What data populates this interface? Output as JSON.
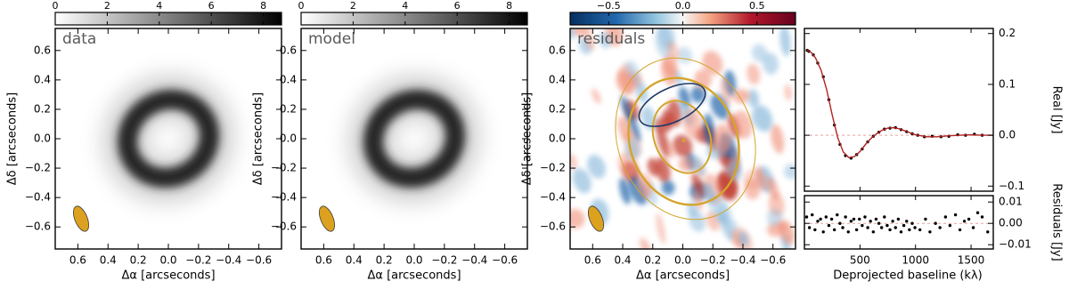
{
  "chart_data": [
    {
      "type": "image",
      "title": "data",
      "colormap": "gray",
      "xlabel": "Δα  [arcseconds]",
      "ylabel": "Δδ  [arcseconds]",
      "xlim": [
        0.75,
        -0.75
      ],
      "ylim": [
        -0.75,
        0.75
      ],
      "xticks": [
        0.6,
        0.4,
        0.2,
        {
          "value": 0,
          "label": "0.0"
        },
        {
          "value": -0.2,
          "label": "−0.2"
        },
        {
          "value": -0.4,
          "label": "−0.4"
        },
        {
          "value": -0.6,
          "label": "−0.6"
        }
      ],
      "yticks": [
        {
          "value": -0.6,
          "label": "−0.6"
        },
        {
          "value": -0.4,
          "label": "−0.4"
        },
        {
          "value": -0.2,
          "label": "−0.2"
        },
        {
          "value": 0,
          "label": "0.0"
        },
        0.2,
        0.4,
        0.6
      ],
      "colorbar": {
        "clim": [
          0,
          8.7
        ],
        "ticks": [
          0,
          2,
          4,
          6,
          8
        ]
      }
    },
    {
      "type": "image",
      "title": "model",
      "colormap": "gray",
      "xlabel": "Δα  [arcseconds]",
      "ylabel": "Δδ  [arcseconds]",
      "xlim": [
        0.75,
        -0.75
      ],
      "ylim": [
        -0.75,
        0.75
      ],
      "xticks": [
        0.6,
        0.4,
        0.2,
        {
          "value": 0,
          "label": "0.0"
        },
        {
          "value": -0.2,
          "label": "−0.2"
        },
        {
          "value": -0.4,
          "label": "−0.4"
        },
        {
          "value": -0.6,
          "label": "−0.6"
        }
      ],
      "yticks": [
        {
          "value": -0.6,
          "label": "−0.6"
        },
        {
          "value": -0.4,
          "label": "−0.4"
        },
        {
          "value": -0.2,
          "label": "−0.2"
        },
        {
          "value": 0,
          "label": "0.0"
        },
        0.2,
        0.4,
        0.6
      ],
      "colorbar": {
        "clim": [
          0,
          8.7
        ],
        "ticks": [
          0,
          2,
          4,
          6,
          8
        ]
      }
    },
    {
      "type": "image",
      "title": "residuals",
      "colormap": "RdBu",
      "xlabel": "Δα  [arcseconds]",
      "ylabel": "Δδ  [arcseconds]",
      "xlim": [
        0.75,
        -0.75
      ],
      "ylim": [
        -0.75,
        0.75
      ],
      "xticks": [
        0.6,
        0.4,
        0.2,
        {
          "value": 0,
          "label": "0.0"
        },
        {
          "value": -0.2,
          "label": "−0.2"
        },
        {
          "value": -0.4,
          "label": "−0.4"
        },
        {
          "value": -0.6,
          "label": "−0.6"
        }
      ],
      "yticks": [
        {
          "value": -0.6,
          "label": "−0.6"
        },
        {
          "value": -0.4,
          "label": "−0.4"
        },
        {
          "value": -0.2,
          "label": "−0.2"
        },
        {
          "value": 0,
          "label": "0.0"
        },
        0.2,
        0.4,
        0.6
      ],
      "colorbar": {
        "clim": [
          -0.76,
          0.76
        ],
        "ticks": [
          {
            "value": -0.5,
            "label": "−0.5"
          },
          {
            "value": 0,
            "label": "0.0"
          },
          0.5
        ]
      }
    },
    {
      "type": "scatter",
      "ylabel": "Real [Jy]",
      "xlim": [
        0,
        1700
      ],
      "xticks": [
        500,
        1000,
        1500
      ],
      "ylim": [
        -0.11,
        0.21
      ],
      "yticks": [
        {
          "value": -0.1,
          "label": "−0.1"
        },
        {
          "value": 0,
          "label": "0.0"
        },
        0.1,
        0.2
      ],
      "series": [
        {
          "type": "scatter",
          "color": "#000000",
          "x": [
            25,
            40,
            80,
            120,
            170,
            220,
            270,
            320,
            370,
            420,
            470,
            520,
            570,
            620,
            670,
            720,
            770,
            820,
            870,
            920,
            970,
            1020,
            1080,
            1150,
            1230,
            1300,
            1380,
            1450,
            1530,
            1600
          ],
          "values": [
            0.167,
            0.165,
            0.158,
            0.142,
            0.115,
            0.07,
            0.02,
            -0.018,
            -0.04,
            -0.045,
            -0.038,
            -0.027,
            -0.013,
            -0.002,
            0.006,
            0.012,
            0.014,
            0.015,
            0.011,
            0.007,
            0.003,
            0.0,
            -0.003,
            -0.002,
            -0.003,
            -0.002,
            0.001,
            0.0,
            0.002,
            0.0
          ]
        },
        {
          "type": "line",
          "color": "#b22222",
          "x": [
            20,
            60,
            100,
            150,
            200,
            250,
            300,
            350,
            400,
            450,
            500,
            550,
            600,
            650,
            700,
            750,
            800,
            850,
            900,
            950,
            1000,
            1100,
            1200,
            1300,
            1400,
            1500,
            1600,
            1700
          ],
          "values": [
            0.168,
            0.163,
            0.152,
            0.128,
            0.09,
            0.04,
            -0.005,
            -0.033,
            -0.044,
            -0.042,
            -0.032,
            -0.018,
            -0.006,
            0.003,
            0.01,
            0.014,
            0.015,
            0.013,
            0.009,
            0.005,
            0.001,
            -0.003,
            -0.003,
            -0.001,
            0.0,
            0.001,
            0.0,
            0.0
          ]
        }
      ]
    },
    {
      "type": "scatter",
      "xlabel": "Deprojected baseline (kλ)",
      "ylabel": "Residuals [Jy]",
      "xlim": [
        0,
        1700
      ],
      "xticks": [
        500,
        1000,
        1500
      ],
      "ylim": [
        -0.012,
        0.013
      ],
      "yticks": [
        {
          "value": -0.01,
          "label": "−0.01"
        },
        {
          "value": 0,
          "label": "0.00"
        },
        0.01
      ],
      "series": [
        {
          "type": "scatter",
          "color": "#000000",
          "x": [
            20,
            45,
            70,
            95,
            120,
            145,
            170,
            195,
            220,
            245,
            270,
            295,
            320,
            345,
            370,
            395,
            420,
            445,
            470,
            495,
            520,
            545,
            570,
            595,
            620,
            645,
            670,
            695,
            720,
            745,
            770,
            795,
            820,
            845,
            870,
            895,
            920,
            945,
            970,
            995,
            1040,
            1090,
            1130,
            1180,
            1220,
            1270,
            1310,
            1360,
            1400,
            1440,
            1480,
            1520,
            1560,
            1600,
            1650
          ],
          "values": [
            0.003,
            -0.002,
            0.004,
            -0.003,
            0.001,
            0.002,
            -0.004,
            0.003,
            -0.001,
            0.002,
            -0.003,
            0.004,
            0.0,
            -0.002,
            0.003,
            -0.004,
            0.001,
            0.002,
            -0.003,
            0.002,
            -0.001,
            0.003,
            -0.002,
            0.001,
            -0.004,
            0.002,
            0.0,
            -0.002,
            0.003,
            -0.001,
            -0.003,
            0.001,
            -0.002,
            0.002,
            -0.004,
            -0.001,
            0.001,
            -0.003,
            0.0,
            -0.002,
            -0.003,
            0.002,
            -0.004,
            0.0,
            -0.002,
            0.003,
            -0.001,
            0.004,
            -0.003,
            0.001,
            0.002,
            -0.002,
            0.005,
            0.003,
            -0.004
          ]
        }
      ]
    }
  ]
}
